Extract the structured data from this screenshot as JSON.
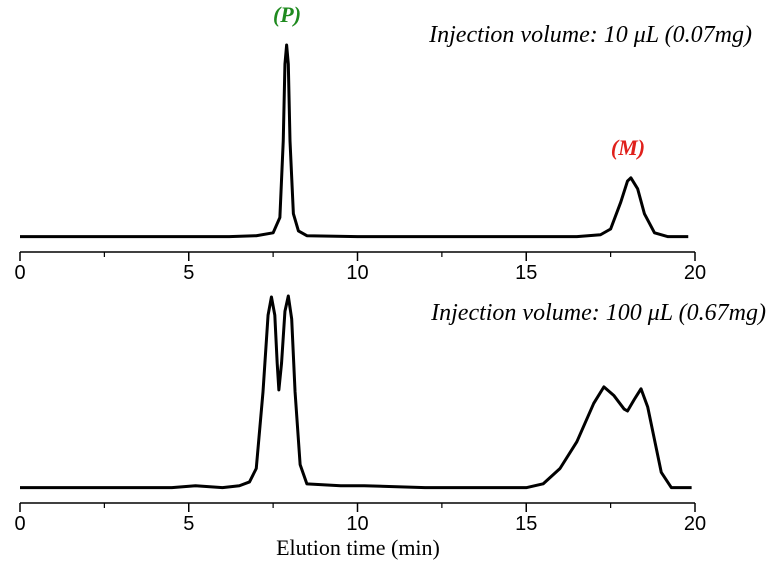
{
  "chart_data": [
    {
      "type": "line",
      "title": "Injection volume: 10 μL (0.07mg)",
      "annotations": [
        {
          "text": "(P)",
          "color": "#1f8a1f"
        },
        {
          "text": "(M)",
          "color": "#e0201b"
        }
      ],
      "x": [
        0,
        5,
        6.2,
        7.0,
        7.5,
        7.7,
        7.8,
        7.85,
        7.9,
        7.95,
        8.0,
        8.1,
        8.25,
        8.5,
        10,
        15,
        16.5,
        17.2,
        17.5,
        17.8,
        18.0,
        18.1,
        18.3,
        18.5,
        18.8,
        19.2,
        19.8
      ],
      "values": [
        0,
        0,
        0,
        0.5,
        2,
        10,
        50,
        90,
        100,
        90,
        50,
        12,
        3,
        0.5,
        0,
        0,
        0,
        1,
        4,
        18,
        29,
        30.7,
        25,
        12,
        2,
        0,
        0
      ],
      "color": "#000000",
      "xlim": [
        0,
        20
      ],
      "xticks": [
        0,
        5,
        10,
        15,
        20
      ],
      "xminor_ticks": [
        2.5,
        7.5,
        12.5,
        17.5
      ],
      "ylim": [
        -8,
        100
      ]
    },
    {
      "type": "line",
      "title": "Injection volume: 100 μL (0.67mg)",
      "xlabel": "Elution time (min)",
      "x": [
        0,
        4.5,
        5.2,
        6,
        6.5,
        6.8,
        7.0,
        7.2,
        7.35,
        7.45,
        7.55,
        7.62,
        7.67,
        7.75,
        7.85,
        7.95,
        8.05,
        8.15,
        8.3,
        8.5,
        9.5,
        10.2,
        12,
        15,
        15.5,
        16,
        16.5,
        17.0,
        17.3,
        17.6,
        17.9,
        18.0,
        18.2,
        18.4,
        18.6,
        18.8,
        19.0,
        19.3,
        19.9
      ],
      "values": [
        0,
        0,
        1,
        0,
        1,
        3,
        10,
        50,
        90,
        99.5,
        90,
        65,
        51,
        65,
        92,
        100,
        88,
        50,
        12,
        2,
        1,
        1,
        0,
        0,
        2,
        10,
        24,
        44,
        52.6,
        48,
        41,
        40,
        46,
        51.6,
        42,
        25,
        8,
        0,
        0
      ],
      "color": "#000000",
      "xlim": [
        0,
        20
      ],
      "xticks": [
        0,
        5,
        10,
        15,
        20
      ],
      "xminor_ticks": [
        2.5,
        7.5,
        12.5,
        17.5
      ],
      "ylim": [
        -8,
        100
      ]
    }
  ]
}
